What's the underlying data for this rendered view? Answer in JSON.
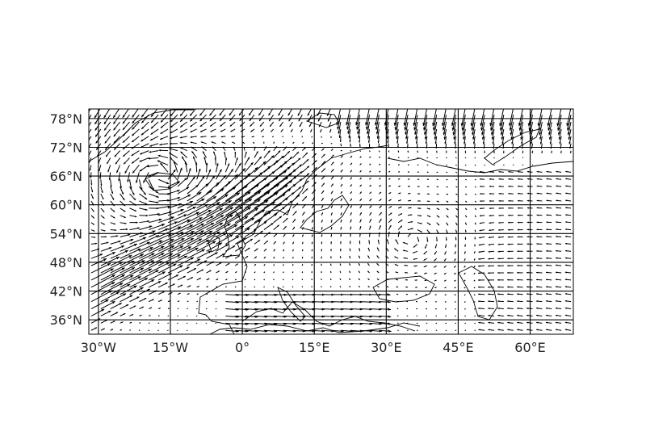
{
  "map": {
    "projection": "PlateCarree",
    "extent": {
      "lon": [
        -32,
        69
      ],
      "lat": [
        33,
        80
      ]
    },
    "gridlines": true,
    "coastlines": true,
    "field": "wind vector quiver",
    "lon_ticks": [
      {
        "value": -30,
        "label": "30°W"
      },
      {
        "value": -15,
        "label": "15°W"
      },
      {
        "value": 0,
        "label": "0°"
      },
      {
        "value": 15,
        "label": "15°E"
      },
      {
        "value": 30,
        "label": "30°E"
      },
      {
        "value": 45,
        "label": "45°E"
      },
      {
        "value": 60,
        "label": "60°E"
      }
    ],
    "lat_ticks": [
      {
        "value": 36,
        "label": "36°N"
      },
      {
        "value": 42,
        "label": "42°N"
      },
      {
        "value": 48,
        "label": "48°N"
      },
      {
        "value": 54,
        "label": "54°N"
      },
      {
        "value": 60,
        "label": "60°N"
      },
      {
        "value": 66,
        "label": "66°N"
      },
      {
        "value": 72,
        "label": "72°N"
      },
      {
        "value": 78,
        "label": "78°N"
      }
    ]
  },
  "colors": {
    "ink": "#000000",
    "tick_text": "#222222",
    "background": "#ffffff"
  }
}
